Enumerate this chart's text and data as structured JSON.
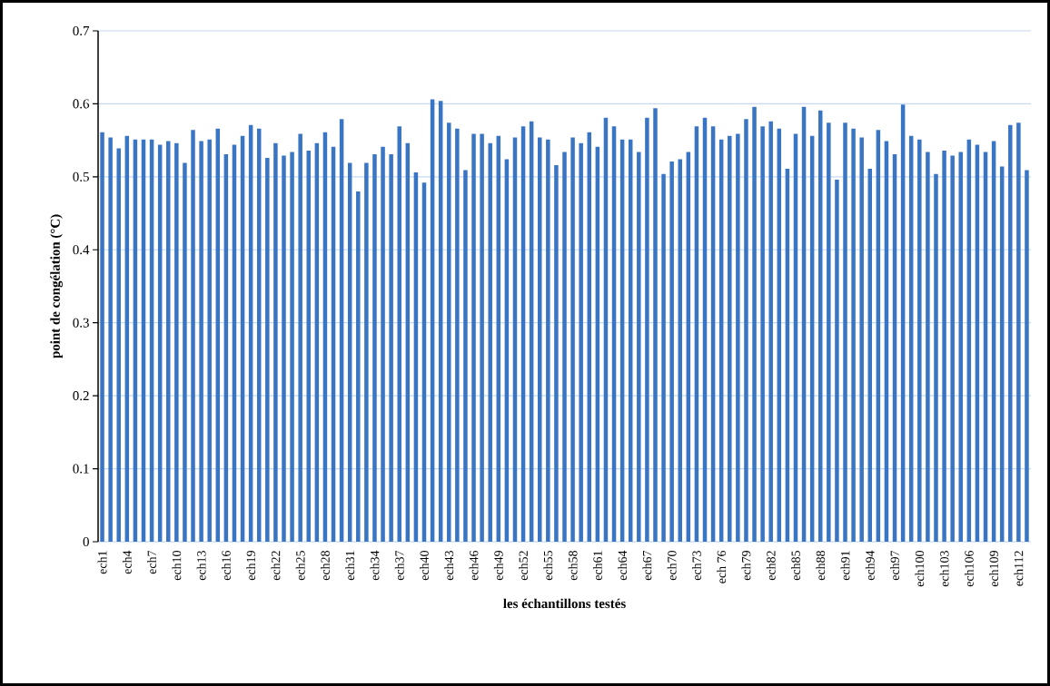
{
  "chart_data": {
    "type": "bar",
    "xlabel": "les échantillons testés",
    "ylabel": "point de congélation (°C)",
    "categories": [
      "ech1",
      null,
      null,
      "ech4",
      null,
      null,
      "ech7",
      null,
      null,
      "ech10",
      null,
      null,
      "ech13",
      null,
      null,
      "ech16",
      null,
      null,
      "ech19",
      null,
      null,
      "ech22",
      null,
      null,
      "ech25",
      null,
      null,
      "ech28",
      null,
      null,
      "ech31",
      null,
      null,
      "ech34",
      null,
      null,
      "ech37",
      null,
      null,
      "ech40",
      null,
      null,
      "ech43",
      null,
      null,
      "ech46",
      null,
      null,
      "ech49",
      null,
      null,
      "ech52",
      null,
      null,
      "ech55",
      null,
      null,
      "ech58",
      null,
      null,
      "ech61",
      null,
      null,
      "ech64",
      null,
      null,
      "ech67",
      null,
      null,
      "ech70",
      null,
      null,
      "ech73",
      null,
      null,
      "ech 76",
      null,
      null,
      "ech79",
      null,
      null,
      "ech82",
      null,
      null,
      "ech85",
      null,
      null,
      "ech88",
      null,
      null,
      "ech91",
      null,
      null,
      "ech94",
      null,
      null,
      "ech97",
      null,
      null,
      "ech100",
      null,
      null,
      "ech103",
      null,
      null,
      "ech106",
      null,
      null,
      "ech109",
      null,
      null,
      "ech112",
      null
    ],
    "values": [
      0.561,
      0.554,
      0.539,
      0.556,
      0.551,
      0.551,
      0.551,
      0.544,
      0.549,
      0.546,
      0.519,
      0.564,
      0.549,
      0.551,
      0.566,
      0.531,
      0.544,
      0.556,
      0.571,
      0.566,
      0.526,
      0.546,
      0.529,
      0.534,
      0.559,
      0.536,
      0.546,
      0.561,
      0.541,
      0.579,
      0.519,
      0.48,
      0.519,
      0.531,
      0.541,
      0.531,
      0.569,
      0.546,
      0.506,
      0.492,
      0.606,
      0.604,
      0.574,
      0.566,
      0.509,
      0.559,
      0.559,
      0.546,
      0.556,
      0.524,
      0.554,
      0.569,
      0.576,
      0.554,
      0.551,
      0.516,
      0.534,
      0.554,
      0.546,
      0.561,
      0.541,
      0.581,
      0.569,
      0.551,
      0.551,
      0.534,
      0.581,
      0.594,
      0.504,
      0.521,
      0.524,
      0.534,
      0.569,
      0.581,
      0.569,
      0.551,
      0.556,
      0.559,
      0.579,
      0.596,
      0.569,
      0.576,
      0.566,
      0.511,
      0.559,
      0.596,
      0.556,
      0.591,
      0.574,
      0.496,
      0.574,
      0.566,
      0.554,
      0.511,
      0.564,
      0.549,
      0.531,
      0.599,
      0.556,
      0.551,
      0.534,
      0.504,
      0.536,
      0.529,
      0.534,
      0.551,
      0.544,
      0.534,
      0.549,
      0.514,
      0.571,
      0.574,
      0.509
    ],
    "color": "#3a75c4",
    "ylim": [
      0,
      0.7
    ],
    "yticks": [
      0,
      0.1,
      0.2,
      0.3,
      0.4,
      0.5,
      0.6,
      0.7
    ],
    "grid": "y"
  }
}
